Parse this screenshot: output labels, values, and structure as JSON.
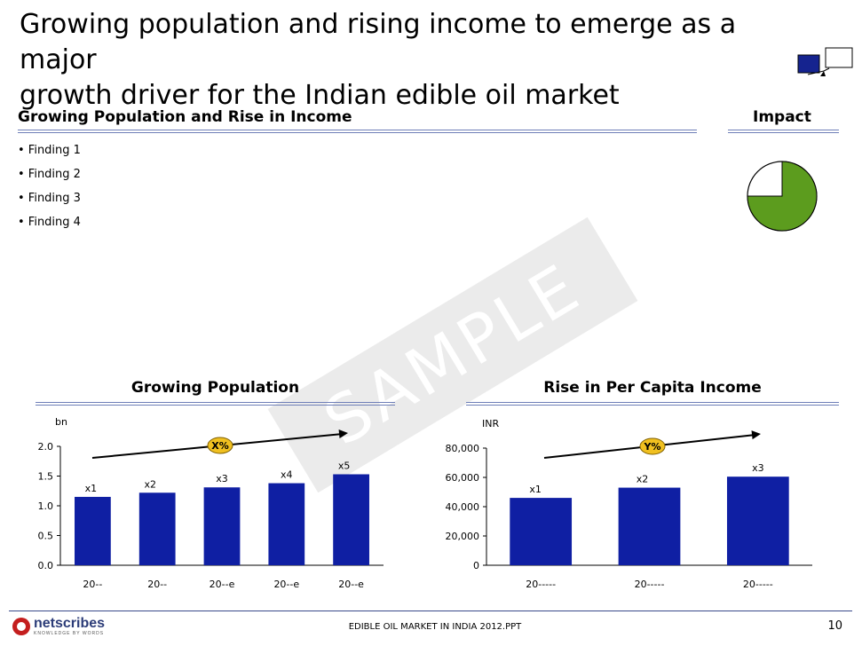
{
  "slide": {
    "title_line1": "Growing population and rising income to emerge as a major",
    "title_line2": "growth driver for the Indian edible oil market"
  },
  "section": {
    "heading": "Growing Population and Rise in Income",
    "impact_label": "Impact",
    "findings": [
      "• Finding 1",
      "• Finding 2",
      "• Finding 3",
      "• Finding 4"
    ],
    "impact_level_fraction": 0.75,
    "colors": {
      "impact_fill": "#5c9c1e",
      "rule": "#6e7fb8"
    }
  },
  "watermark": "SAMPLE",
  "charts": {
    "population_title": "Growing Population",
    "income_title": "Rise in Per Capita Income"
  },
  "chart_data": [
    {
      "type": "bar",
      "title": "Growing Population",
      "ylabel": "bn",
      "categories": [
        "20--",
        "20--",
        "20--e",
        "20--e",
        "20--e"
      ],
      "values": [
        1.15,
        1.22,
        1.31,
        1.38,
        1.53
      ],
      "data_labels": [
        "x1",
        "x2",
        "x3",
        "x4",
        "x5"
      ],
      "yticks": [
        "0.0",
        "0.5",
        "1.0",
        "1.5",
        "2.0"
      ],
      "ylim": [
        0,
        2
      ],
      "growth_label": "X%",
      "bar_color": "#0f1fa3",
      "badge_color": "#f0c020"
    },
    {
      "type": "bar",
      "title": "Rise in Per Capita Income",
      "ylabel": "INR",
      "categories": [
        "20-----",
        "20-----",
        "20-----"
      ],
      "values": [
        46000,
        53000,
        60500
      ],
      "data_labels": [
        "x1",
        "x2",
        "x3"
      ],
      "yticks": [
        "0",
        "20,000",
        "40,000",
        "60,000",
        "80,000"
      ],
      "ylim": [
        0,
        80000
      ],
      "growth_label": "Y%",
      "bar_color": "#0f1fa3",
      "badge_color": "#f0c020"
    }
  ],
  "footer": {
    "logo_name": "netscribes",
    "logo_tagline": "KNOWLEDGE BY WORDS",
    "center": "EDIBLE OIL MARKET IN INDIA 2012.PPT",
    "page": "10"
  }
}
